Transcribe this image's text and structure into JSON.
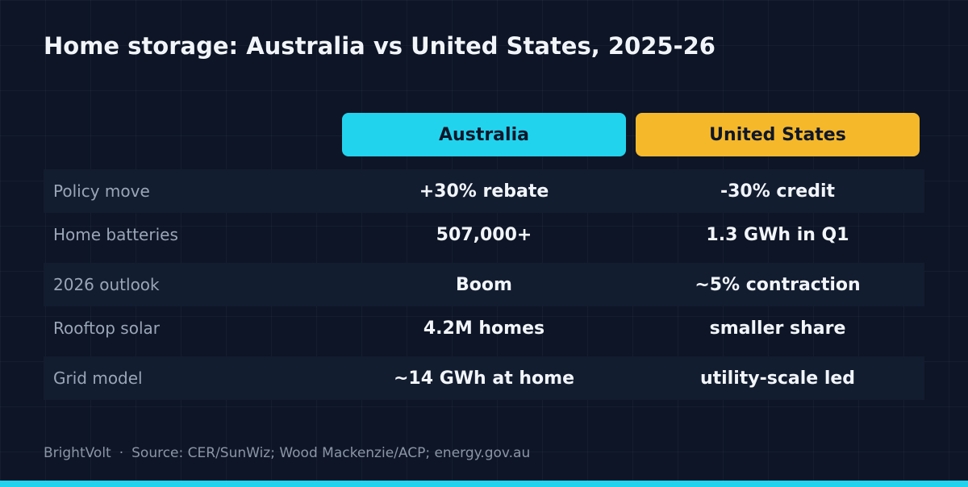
{
  "chart_data": {
    "type": "table",
    "title": "Home storage: Australia vs United States, 2025-26",
    "columns": [
      "Australia",
      "United States"
    ],
    "rows": [
      {
        "label": "Policy move",
        "values": [
          "+30% rebate",
          "-30% credit"
        ]
      },
      {
        "label": "Home batteries",
        "values": [
          "507,000+",
          "1.3 GWh in Q1"
        ]
      },
      {
        "label": "2026 outlook",
        "values": [
          "Boom",
          "~5% contraction"
        ]
      },
      {
        "label": "Rooftop solar",
        "values": [
          "4.2M homes",
          "smaller share"
        ]
      },
      {
        "label": "Grid model",
        "values": [
          "~14 GWh at home",
          "utility-scale led"
        ]
      }
    ]
  },
  "footer": {
    "brand": "BrightVolt",
    "separator": "·",
    "source": "Source: CER/SunWiz; Wood Mackenzie/ACP; energy.gov.au"
  },
  "colors": {
    "australia": "#22d3ee",
    "united_states": "#f5b82a",
    "accent_bar": "#22d3ee"
  }
}
